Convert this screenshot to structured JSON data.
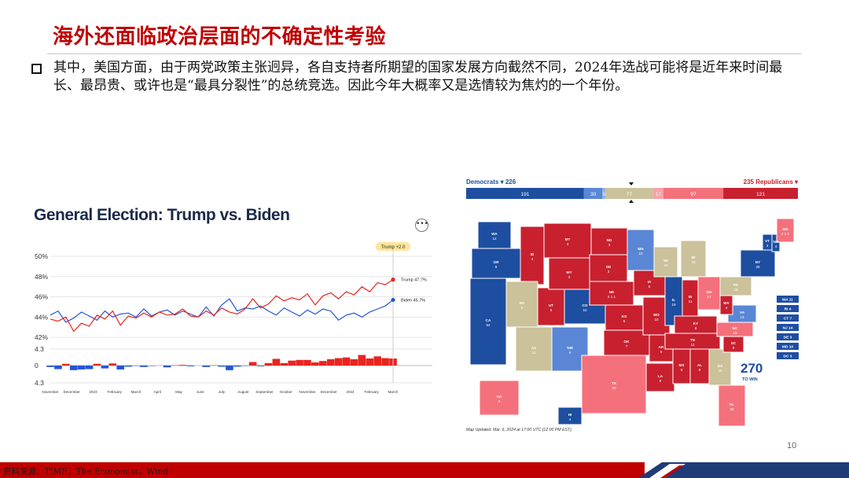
{
  "slide": {
    "title": "海外还面临政治层面的不确定性考验",
    "paragraph": "其中，美国方面，由于两党政策主张迥异，各自支持者所期望的国家发展方向截然不同，2024年选战可能将是近年来时间最长、最昂贵、或许也是“最具分裂性”的总统竞选。因此今年大概率又是选情较为焦灼的一个年份。",
    "page_number": "10",
    "source": "资料来源：TIME，The Economist，Wind"
  },
  "colors": {
    "title_red": "#c00000",
    "trump_red": "#e8251f",
    "biden_blue": "#2455d8",
    "solid_dem": "#1e4ea0",
    "lean_dem": "#5a86d6",
    "likely_dem": "#3f6cc2",
    "tossup": "#cbc19a",
    "lean_rep": "#f4717c",
    "likely_rep": "#e33847",
    "solid_rep": "#c8202f",
    "footer_navy": "#1f3b78"
  },
  "chart_data": {
    "type": "line",
    "title": "General Election: Trump vs. Biden",
    "badge": "Trump +2.0",
    "y_tick_labels": [
      "50%",
      "48%",
      "46%",
      "44%",
      "42%"
    ],
    "ylim": [
      41,
      50
    ],
    "diff_tick_labels": [
      "4.3",
      "0",
      "4.3"
    ],
    "x_tick_labels": [
      "November",
      "December",
      "2023",
      "February",
      "March",
      "April",
      "May",
      "June",
      "July",
      "August",
      "September",
      "October",
      "November",
      "December",
      "2024",
      "February",
      "March"
    ],
    "series": [
      {
        "name": "Trump",
        "end_label": "Trump 47.7%",
        "values": [
          43.8,
          43.6,
          44.0,
          42.6,
          43.4,
          43.1,
          44.2,
          43.8,
          44.6,
          43.2,
          44.1,
          43.9,
          44.4,
          44.0,
          44.5,
          44.2,
          44.3,
          44.8,
          44.1,
          44.0,
          44.6,
          44.2,
          44.9,
          44.5,
          44.3,
          44.8,
          45.8,
          44.9,
          45.3,
          46.1,
          45.6,
          45.9,
          45.7,
          46.3,
          45.2,
          46.1,
          46.4,
          45.8,
          46.5,
          46.2,
          47.0,
          46.5,
          47.4,
          47.2,
          47.7
        ]
      },
      {
        "name": "Biden",
        "end_label": "Biden 45.7%",
        "values": [
          44.2,
          44.6,
          43.5,
          43.9,
          44.5,
          44.1,
          43.7,
          44.6,
          44.0,
          44.3,
          44.4,
          44.0,
          44.8,
          44.1,
          44.5,
          44.7,
          44.2,
          44.6,
          44.3,
          44.0,
          45.0,
          44.1,
          45.2,
          45.8,
          44.6,
          44.9,
          44.8,
          45.1,
          44.6,
          44.2,
          44.9,
          44.5,
          44.1,
          44.7,
          44.3,
          44.8,
          44.6,
          43.7,
          44.2,
          44.4,
          44.0,
          44.5,
          44.8,
          45.1,
          45.7
        ]
      }
    ],
    "x": "time",
    "grid": true
  },
  "map": {
    "dem_label": "Democrats",
    "dem_total": "226",
    "rep_label": "Republicans",
    "rep_total": "235",
    "bar_segments": [
      {
        "label": "191",
        "value": 191,
        "color": "#1e4ea0"
      },
      {
        "label": "30",
        "value": 30,
        "color": "#5a86d6"
      },
      {
        "label": "5",
        "value": 5,
        "color": "#8fb1ea"
      },
      {
        "label": "77",
        "value": 77,
        "color": "#cbc19a"
      },
      {
        "label": "17",
        "value": 17,
        "color": "#f7a2a9"
      },
      {
        "label": "97",
        "value": 97,
        "color": "#f4717c"
      },
      {
        "label": "121",
        "value": 121,
        "color": "#c8202f"
      }
    ],
    "state_labels": [
      "WA 12",
      "OR 8",
      "ID 4",
      "MT 4",
      "ND 3",
      "MN 10",
      "WI 10",
      "MI 15",
      "NY 28",
      "VT 3",
      "NH 4",
      "ME 2 1 1",
      "WY 3",
      "SD 3",
      "NE 2 1 1",
      "IA 6",
      "PA 19",
      "OH 17",
      "IN 11",
      "IL 19",
      "NV 6",
      "UT 6",
      "CO 10",
      "CA 54",
      "KS 6",
      "MO 10",
      "KY 8",
      "WV 4",
      "VA 13",
      "NC 16",
      "AZ 11",
      "NM 5",
      "OK 7",
      "AR 6",
      "TN 11",
      "SC 9",
      "GA 16",
      "AL 9",
      "MS 6",
      "LA 8",
      "TX 40",
      "FL 30",
      "AK 3",
      "HI 4"
    ],
    "small_states": [
      "MA 11",
      "RI 4",
      "CT 7",
      "NJ 14",
      "DE 3",
      "MD 10",
      "DC 3"
    ],
    "win_label": "270",
    "win_sub": "TO WIN",
    "updated": "Map Updated: Mar. 6, 2024 at 17:00 UTC (12:00 PM EST)"
  }
}
